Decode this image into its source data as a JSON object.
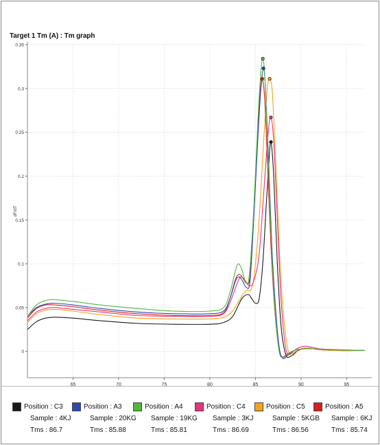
{
  "chart_data": {
    "type": "line",
    "title": "Target 1 Tm (A) : Tm graph",
    "xlabel": "",
    "ylabel": "dF/dT",
    "xlim": [
      60,
      97
    ],
    "ylim": [
      -0.03,
      0.35
    ],
    "x_ticks": [
      65,
      70,
      75,
      80,
      85,
      90,
      95
    ],
    "y_ticks": [
      0,
      0.05,
      0.1,
      0.15,
      0.2,
      0.25,
      0.3,
      0.35
    ],
    "y_tick_labels": [
      "0",
      "0.05",
      "0.1",
      "0.15",
      "0.2",
      "0.25",
      "0.3",
      "0.35"
    ],
    "grid": "dotted",
    "legend_placement": "bottom",
    "series": [
      {
        "name": "Position : C3",
        "sample": "Sample : 4KJ",
        "tms_label": "Tms : 86.7",
        "tm": 86.7,
        "peak": 0.239,
        "color": "#1a1a1a",
        "points": [
          [
            60,
            0.025
          ],
          [
            61,
            0.034
          ],
          [
            62,
            0.038
          ],
          [
            63,
            0.039
          ],
          [
            65,
            0.038
          ],
          [
            68,
            0.035
          ],
          [
            72,
            0.032
          ],
          [
            76,
            0.031
          ],
          [
            80,
            0.031
          ],
          [
            81.5,
            0.033
          ],
          [
            82.5,
            0.04
          ],
          [
            83.5,
            0.06
          ],
          [
            84.2,
            0.065
          ],
          [
            84.6,
            0.06
          ],
          [
            85.0,
            0.055
          ],
          [
            85.4,
            0.06
          ],
          [
            85.8,
            0.1
          ],
          [
            86.2,
            0.17
          ],
          [
            86.5,
            0.22
          ],
          [
            86.7,
            0.239
          ],
          [
            87.0,
            0.2
          ],
          [
            87.4,
            0.1
          ],
          [
            87.8,
            0.03
          ],
          [
            88.3,
            -0.003
          ],
          [
            88.8,
            -0.006
          ],
          [
            89.5,
            0.0
          ],
          [
            90.5,
            0.004
          ],
          [
            92,
            0.002
          ],
          [
            94,
            0.001
          ],
          [
            97,
            0.001
          ]
        ]
      },
      {
        "name": "Position : A3",
        "sample": "Sample : 20KG",
        "tms_label": "Tms : 85.88",
        "tm": 85.88,
        "peak": 0.323,
        "color": "#2c49b4",
        "points": [
          [
            60,
            0.04
          ],
          [
            61,
            0.05
          ],
          [
            62,
            0.054
          ],
          [
            63,
            0.055
          ],
          [
            65,
            0.053
          ],
          [
            68,
            0.049
          ],
          [
            72,
            0.045
          ],
          [
            76,
            0.043
          ],
          [
            80,
            0.043
          ],
          [
            81.5,
            0.046
          ],
          [
            82.2,
            0.06
          ],
          [
            82.8,
            0.08
          ],
          [
            83.2,
            0.085
          ],
          [
            83.6,
            0.08
          ],
          [
            84.0,
            0.073
          ],
          [
            84.4,
            0.08
          ],
          [
            84.8,
            0.15
          ],
          [
            85.3,
            0.25
          ],
          [
            85.6,
            0.3
          ],
          [
            85.88,
            0.323
          ],
          [
            86.1,
            0.3
          ],
          [
            86.4,
            0.23
          ],
          [
            86.8,
            0.12
          ],
          [
            87.2,
            0.05
          ],
          [
            87.6,
            0.005
          ],
          [
            88.0,
            -0.008
          ],
          [
            88.6,
            -0.004
          ],
          [
            89.5,
            0.002
          ],
          [
            91,
            0.003
          ],
          [
            93,
            0.002
          ],
          [
            97,
            0.001
          ]
        ]
      },
      {
        "name": "Position : A4",
        "sample": "Sample : 19KG",
        "tms_label": "Tms : 85.81",
        "tm": 85.81,
        "peak": 0.334,
        "color": "#4fb83c",
        "points": [
          [
            60,
            0.04
          ],
          [
            61,
            0.053
          ],
          [
            62,
            0.058
          ],
          [
            63,
            0.059
          ],
          [
            65,
            0.057
          ],
          [
            68,
            0.053
          ],
          [
            72,
            0.049
          ],
          [
            76,
            0.046
          ],
          [
            80,
            0.046
          ],
          [
            81.5,
            0.05
          ],
          [
            82.2,
            0.067
          ],
          [
            82.8,
            0.092
          ],
          [
            83.1,
            0.1
          ],
          [
            83.5,
            0.094
          ],
          [
            83.9,
            0.08
          ],
          [
            84.3,
            0.085
          ],
          [
            84.8,
            0.16
          ],
          [
            85.3,
            0.27
          ],
          [
            85.6,
            0.32
          ],
          [
            85.81,
            0.334
          ],
          [
            86.05,
            0.31
          ],
          [
            86.4,
            0.22
          ],
          [
            86.8,
            0.11
          ],
          [
            87.2,
            0.04
          ],
          [
            87.6,
            0.0
          ],
          [
            88.0,
            -0.007
          ],
          [
            88.6,
            -0.003
          ],
          [
            89.5,
            0.002
          ],
          [
            91,
            0.003
          ],
          [
            93,
            0.002
          ],
          [
            97,
            0.001
          ]
        ]
      },
      {
        "name": "Position : C4",
        "sample": "Sample : 3KJ",
        "tms_label": "Tms : 86.69",
        "tm": 86.69,
        "peak": 0.267,
        "color": "#e8337a",
        "points": [
          [
            60,
            0.035
          ],
          [
            61,
            0.045
          ],
          [
            62,
            0.049
          ],
          [
            63,
            0.05
          ],
          [
            65,
            0.048
          ],
          [
            68,
            0.045
          ],
          [
            72,
            0.041
          ],
          [
            76,
            0.04
          ],
          [
            80,
            0.04
          ],
          [
            81.5,
            0.043
          ],
          [
            82.3,
            0.058
          ],
          [
            83.0,
            0.078
          ],
          [
            83.4,
            0.085
          ],
          [
            83.8,
            0.082
          ],
          [
            84.3,
            0.075
          ],
          [
            84.8,
            0.08
          ],
          [
            85.4,
            0.11
          ],
          [
            85.9,
            0.18
          ],
          [
            86.4,
            0.25
          ],
          [
            86.69,
            0.267
          ],
          [
            87.0,
            0.24
          ],
          [
            87.4,
            0.15
          ],
          [
            87.8,
            0.06
          ],
          [
            88.3,
            0.005
          ],
          [
            88.8,
            -0.003
          ],
          [
            89.5,
            0.003
          ],
          [
            90.5,
            0.006
          ],
          [
            92,
            0.003
          ],
          [
            94,
            0.002
          ],
          [
            97,
            0.001
          ]
        ]
      },
      {
        "name": "Position : C5",
        "sample": "Sample : 5KGB",
        "tms_label": "Tms : 86.56",
        "tm": 86.56,
        "peak": 0.311,
        "color": "#f5a21c",
        "points": [
          [
            60,
            0.033
          ],
          [
            61,
            0.043
          ],
          [
            62,
            0.047
          ],
          [
            63,
            0.048
          ],
          [
            65,
            0.046
          ],
          [
            68,
            0.042
          ],
          [
            72,
            0.038
          ],
          [
            76,
            0.037
          ],
          [
            80,
            0.037
          ],
          [
            81.5,
            0.039
          ],
          [
            82.4,
            0.045
          ],
          [
            83.2,
            0.058
          ],
          [
            83.7,
            0.066
          ],
          [
            84.1,
            0.07
          ],
          [
            84.5,
            0.07
          ],
          [
            84.9,
            0.09
          ],
          [
            85.4,
            0.15
          ],
          [
            85.9,
            0.24
          ],
          [
            86.3,
            0.3
          ],
          [
            86.56,
            0.311
          ],
          [
            86.85,
            0.295
          ],
          [
            87.2,
            0.22
          ],
          [
            87.6,
            0.12
          ],
          [
            88.0,
            0.05
          ],
          [
            88.5,
            0.005
          ],
          [
            89.0,
            -0.005
          ],
          [
            89.6,
            0.0
          ],
          [
            90.5,
            0.004
          ],
          [
            92,
            0.002
          ],
          [
            94,
            0.001
          ],
          [
            97,
            0.001
          ]
        ]
      },
      {
        "name": "Position : A5",
        "sample": "Sample : 6KJ",
        "tms_label": "Tms : 85.74",
        "tm": 85.74,
        "peak": 0.311,
        "color": "#d42020",
        "points": [
          [
            60,
            0.038
          ],
          [
            61,
            0.049
          ],
          [
            62,
            0.053
          ],
          [
            63,
            0.053
          ],
          [
            65,
            0.051
          ],
          [
            68,
            0.047
          ],
          [
            72,
            0.043
          ],
          [
            76,
            0.041
          ],
          [
            80,
            0.041
          ],
          [
            81.5,
            0.044
          ],
          [
            82.2,
            0.06
          ],
          [
            82.8,
            0.082
          ],
          [
            83.2,
            0.088
          ],
          [
            83.6,
            0.084
          ],
          [
            84.0,
            0.078
          ],
          [
            84.4,
            0.085
          ],
          [
            84.8,
            0.15
          ],
          [
            85.3,
            0.26
          ],
          [
            85.55,
            0.3
          ],
          [
            85.74,
            0.311
          ],
          [
            86.0,
            0.29
          ],
          [
            86.3,
            0.22
          ],
          [
            86.7,
            0.12
          ],
          [
            87.1,
            0.05
          ],
          [
            87.5,
            0.008
          ],
          [
            87.9,
            -0.006
          ],
          [
            88.5,
            -0.003
          ],
          [
            89.5,
            0.002
          ],
          [
            91,
            0.003
          ],
          [
            93,
            0.002
          ],
          [
            97,
            0.001
          ]
        ]
      }
    ]
  }
}
